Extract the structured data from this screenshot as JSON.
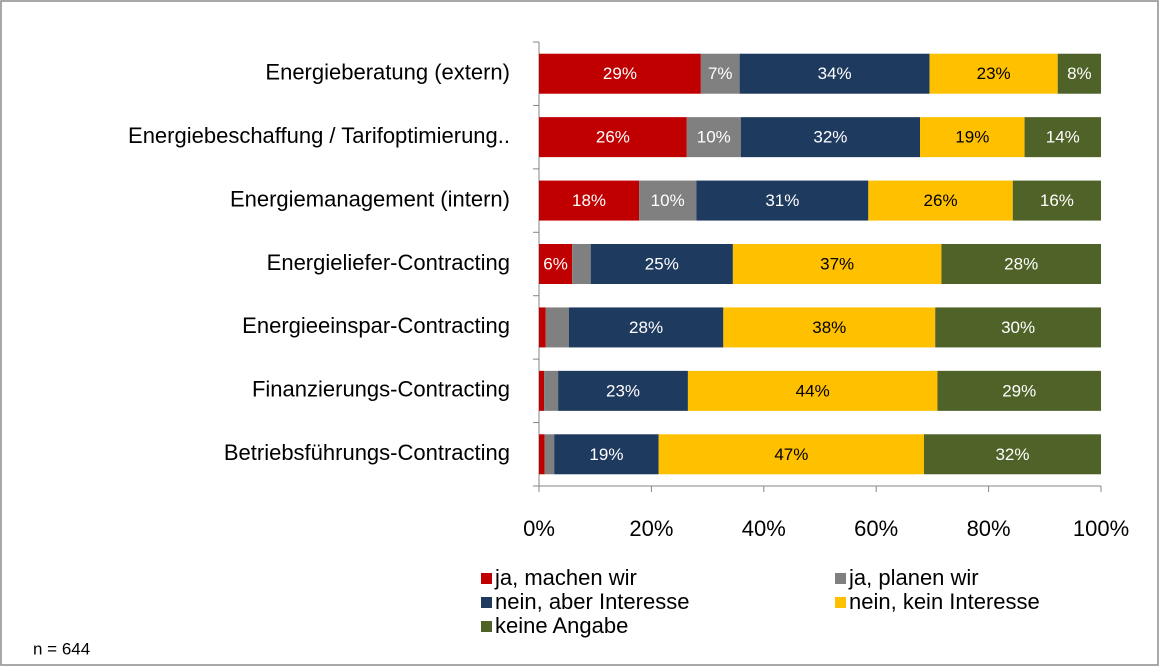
{
  "chart_data": {
    "type": "stacked_bar_horizontal",
    "categories": [
      "Energieberatung (extern)",
      "Energiebeschaffung / Tarifoptimierung..",
      "Energiemanagement (intern)",
      "Energieliefer-Contracting",
      "Energieeinspar-Contracting",
      "Finanzierungs-Contracting",
      "Betriebsführungs-Contracting"
    ],
    "series": [
      {
        "name": "ja, machen wir",
        "color": "#c00000",
        "values": [
          28.8,
          26.3,
          17.8,
          5.9,
          1.2,
          0.9,
          1.0
        ],
        "value_labels": [
          "29%",
          "26%",
          "18%",
          "6%",
          null,
          null,
          null
        ]
      },
      {
        "name": "ja, planen wir",
        "color": "#808080",
        "values": [
          6.9,
          9.6,
          10.2,
          3.3,
          4.1,
          2.5,
          1.7
        ],
        "value_labels": [
          "7%",
          "10%",
          "10%",
          null,
          null,
          null,
          null
        ]
      },
      {
        "name": "nein, aber Interesse",
        "color": "#1f3a5f",
        "values": [
          33.8,
          31.9,
          30.6,
          25.3,
          27.5,
          23.1,
          18.6
        ],
        "value_labels": [
          "34%",
          "32%",
          "31%",
          "25%",
          "28%",
          "23%",
          "19%"
        ]
      },
      {
        "name": "nein, kein Interesse",
        "color": "#ffc000",
        "values": [
          22.8,
          18.6,
          25.7,
          37.1,
          37.7,
          44.4,
          47.2
        ],
        "value_labels": [
          "23%",
          "19%",
          "26%",
          "37%",
          "38%",
          "44%",
          "47%"
        ]
      },
      {
        "name": "keine Angabe",
        "color": "#4f6228",
        "values": [
          7.7,
          13.6,
          15.7,
          28.4,
          29.5,
          29.1,
          31.5
        ],
        "value_labels": [
          "8%",
          "14%",
          "16%",
          "28%",
          "30%",
          "29%",
          "32%"
        ]
      }
    ],
    "xlim": [
      0,
      100
    ],
    "xticks": [
      {
        "value": 0,
        "label": "0%"
      },
      {
        "value": 20,
        "label": "20%"
      },
      {
        "value": 40,
        "label": "40%"
      },
      {
        "value": 60,
        "label": "60%"
      },
      {
        "value": 80,
        "label": "80%"
      },
      {
        "value": 100,
        "label": "100%"
      }
    ],
    "note": "n = 644"
  }
}
